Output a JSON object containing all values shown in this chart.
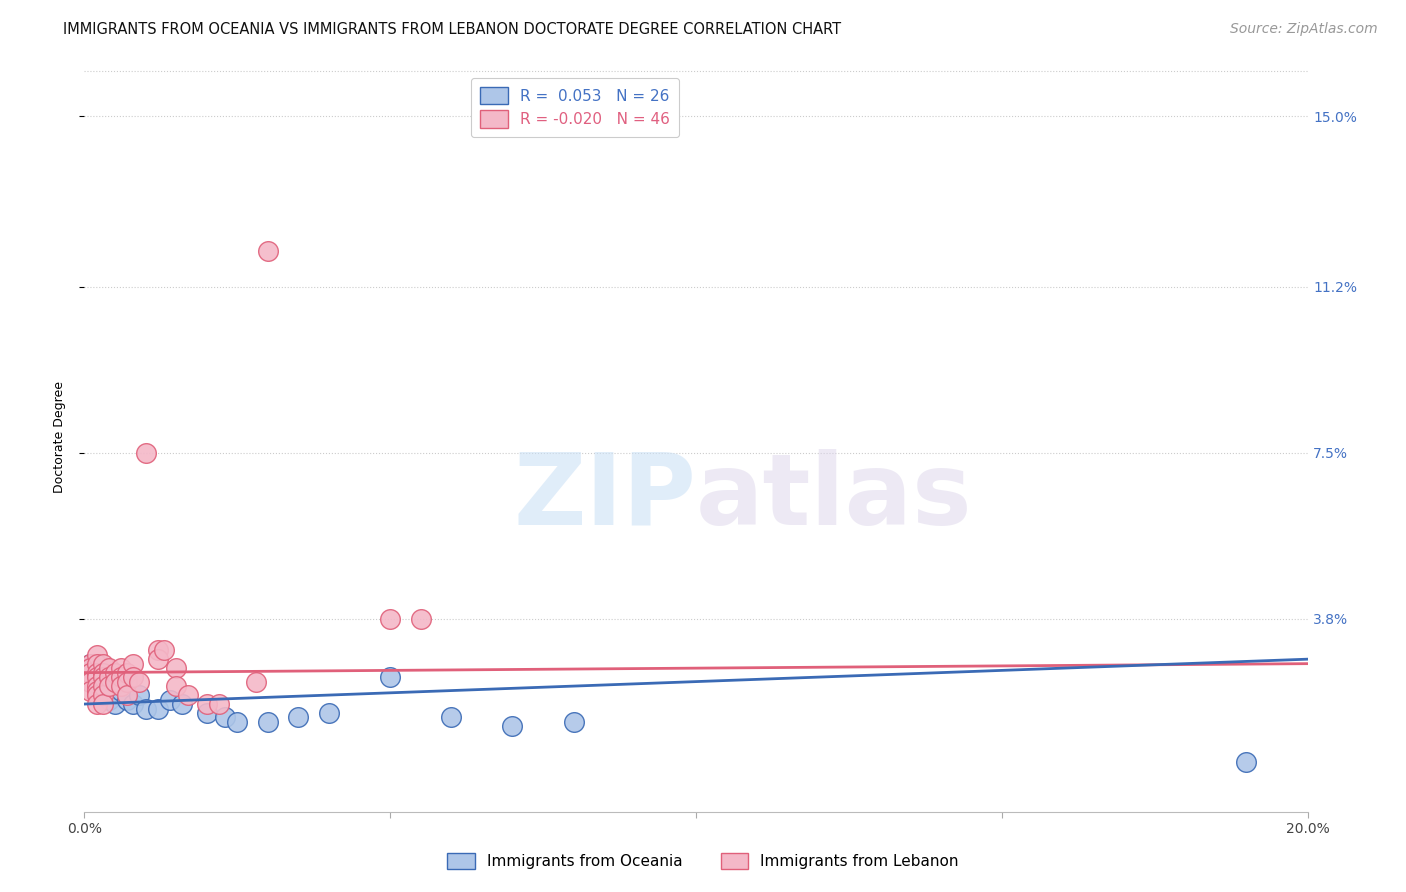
{
  "title": "IMMIGRANTS FROM OCEANIA VS IMMIGRANTS FROM LEBANON DOCTORATE DEGREE CORRELATION CHART",
  "source": "Source: ZipAtlas.com",
  "ylabel": "Doctorate Degree",
  "xlim": [
    0.0,
    0.2
  ],
  "ylim": [
    -0.005,
    0.162
  ],
  "ytick_labels": [
    "15.0%",
    "11.2%",
    "7.5%",
    "3.8%"
  ],
  "ytick_values": [
    0.15,
    0.112,
    0.075,
    0.038
  ],
  "oceania_color": "#aec6e8",
  "lebanon_color": "#f4b8c8",
  "line_oceania_color": "#3a6ab5",
  "line_lebanon_color": "#e0607a",
  "background_color": "#ffffff",
  "grid_color": "#cccccc",
  "oceania_points": [
    [
      0.001,
      0.028
    ],
    [
      0.002,
      0.026
    ],
    [
      0.003,
      0.024
    ],
    [
      0.003,
      0.022
    ],
    [
      0.004,
      0.021
    ],
    [
      0.004,
      0.02
    ],
    [
      0.005,
      0.019
    ],
    [
      0.006,
      0.022
    ],
    [
      0.007,
      0.02
    ],
    [
      0.008,
      0.019
    ],
    [
      0.009,
      0.021
    ],
    [
      0.01,
      0.018
    ],
    [
      0.012,
      0.018
    ],
    [
      0.014,
      0.02
    ],
    [
      0.016,
      0.019
    ],
    [
      0.02,
      0.017
    ],
    [
      0.023,
      0.016
    ],
    [
      0.025,
      0.015
    ],
    [
      0.03,
      0.015
    ],
    [
      0.035,
      0.016
    ],
    [
      0.04,
      0.017
    ],
    [
      0.05,
      0.025
    ],
    [
      0.06,
      0.016
    ],
    [
      0.07,
      0.014
    ],
    [
      0.08,
      0.015
    ],
    [
      0.19,
      0.006
    ]
  ],
  "lebanon_points": [
    [
      0.001,
      0.028
    ],
    [
      0.001,
      0.027
    ],
    [
      0.001,
      0.026
    ],
    [
      0.001,
      0.024
    ],
    [
      0.001,
      0.022
    ],
    [
      0.002,
      0.03
    ],
    [
      0.002,
      0.028
    ],
    [
      0.002,
      0.026
    ],
    [
      0.002,
      0.025
    ],
    [
      0.002,
      0.023
    ],
    [
      0.002,
      0.022
    ],
    [
      0.002,
      0.021
    ],
    [
      0.002,
      0.019
    ],
    [
      0.003,
      0.028
    ],
    [
      0.003,
      0.026
    ],
    [
      0.003,
      0.025
    ],
    [
      0.003,
      0.023
    ],
    [
      0.003,
      0.021
    ],
    [
      0.003,
      0.019
    ],
    [
      0.004,
      0.027
    ],
    [
      0.004,
      0.025
    ],
    [
      0.004,
      0.023
    ],
    [
      0.005,
      0.026
    ],
    [
      0.005,
      0.024
    ],
    [
      0.006,
      0.027
    ],
    [
      0.006,
      0.025
    ],
    [
      0.006,
      0.023
    ],
    [
      0.007,
      0.026
    ],
    [
      0.007,
      0.024
    ],
    [
      0.007,
      0.021
    ],
    [
      0.008,
      0.028
    ],
    [
      0.008,
      0.025
    ],
    [
      0.009,
      0.024
    ],
    [
      0.01,
      0.075
    ],
    [
      0.012,
      0.031
    ],
    [
      0.012,
      0.029
    ],
    [
      0.013,
      0.031
    ],
    [
      0.015,
      0.027
    ],
    [
      0.015,
      0.023
    ],
    [
      0.017,
      0.021
    ],
    [
      0.02,
      0.019
    ],
    [
      0.022,
      0.019
    ],
    [
      0.028,
      0.024
    ],
    [
      0.03,
      0.12
    ],
    [
      0.05,
      0.038
    ],
    [
      0.055,
      0.038
    ]
  ],
  "title_fontsize": 10.5,
  "axis_label_fontsize": 9,
  "tick_fontsize": 10,
  "legend_fontsize": 11,
  "source_fontsize": 10,
  "watermark_text": "ZIPatlas",
  "legend_R_N_oceania": "R =  0.053   N = 26",
  "legend_R_N_lebanon": "R = -0.020   N = 46",
  "bottom_legend_oceania": "Immigrants from Oceania",
  "bottom_legend_lebanon": "Immigrants from Lebanon"
}
